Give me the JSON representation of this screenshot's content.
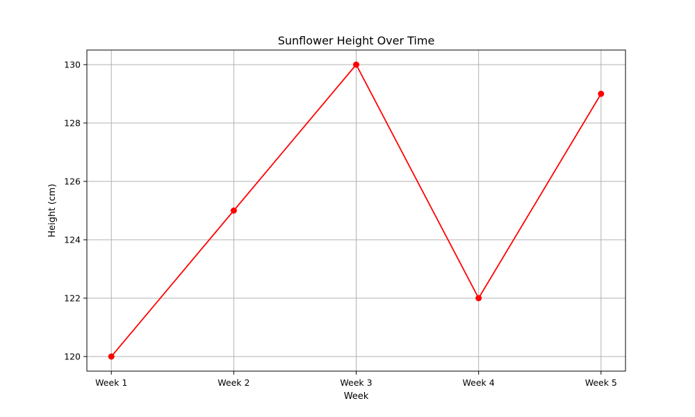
{
  "chart_data": {
    "type": "line",
    "title": "Sunflower Height Over Time",
    "xlabel": "Week",
    "ylabel": "Height (cm)",
    "categories": [
      "Week 1",
      "Week 2",
      "Week 3",
      "Week 4",
      "Week 5"
    ],
    "series": [
      {
        "values": [
          120,
          125,
          130,
          122,
          129
        ],
        "color": "#ff0000",
        "marker": "circle"
      }
    ],
    "ylim": [
      119.5,
      130.5
    ],
    "yticks": [
      120,
      122,
      124,
      126,
      128,
      130
    ],
    "grid": true,
    "grid_color": "#b0b0b0"
  }
}
